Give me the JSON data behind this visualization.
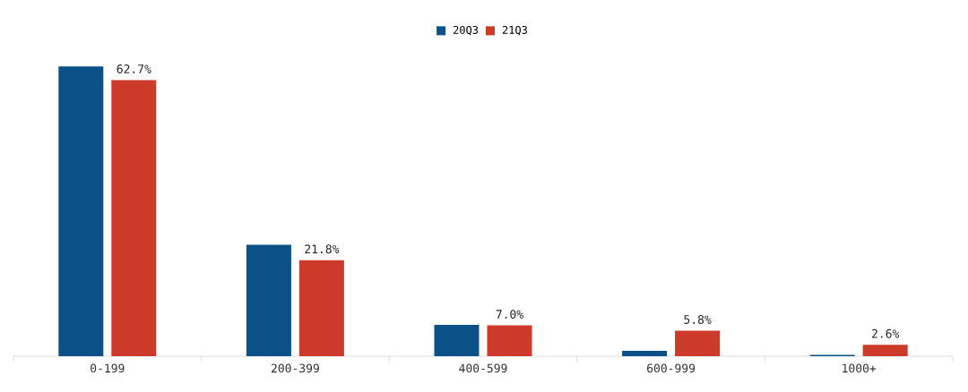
{
  "chart_data": {
    "type": "bar",
    "categories": [
      "0-199",
      "200-399",
      "400-599",
      "600-999",
      "1000+"
    ],
    "series": [
      {
        "name": "20Q3",
        "color": "#0b5086",
        "values": [
          65.8,
          25.3,
          7.1,
          1.2,
          0.3
        ]
      },
      {
        "name": "21Q3",
        "color": "#cc3a2a",
        "values": [
          62.7,
          21.8,
          7.0,
          5.8,
          2.6
        ],
        "value_labels": [
          "62.7%",
          "21.8%",
          "7.0%",
          "5.8%",
          "2.6%"
        ]
      }
    ],
    "legend": "top"
  }
}
